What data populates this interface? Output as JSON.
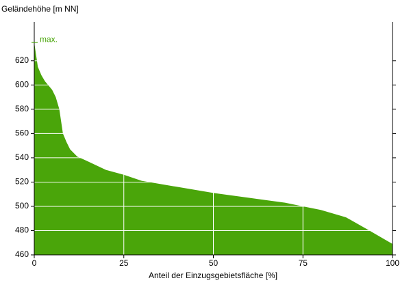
{
  "chart_data": {
    "type": "area",
    "title": "Geländehöhe [m NN]",
    "xlabel": "Anteil der Einzugsgebietsfläche [%]",
    "x": [
      0,
      0.5,
      1,
      2,
      3,
      5,
      6,
      7,
      7.5,
      8,
      9,
      10,
      12,
      15,
      20,
      25,
      30,
      40,
      50,
      60,
      70,
      75,
      80,
      87,
      93,
      100
    ],
    "values": [
      635,
      625,
      615,
      608,
      603,
      596,
      590,
      580,
      570,
      560,
      553,
      547,
      541,
      537,
      530,
      526,
      521,
      516,
      511,
      507,
      503,
      500,
      497,
      491,
      481,
      469
    ],
    "color": "#4aa50a",
    "xlim": [
      0,
      100
    ],
    "xticks": [
      0,
      25,
      50,
      75,
      100
    ],
    "ylim": [
      460,
      652
    ],
    "yticks": [
      460,
      480,
      500,
      520,
      540,
      560,
      580,
      600,
      620
    ],
    "grid": true,
    "grid_color": "#ffffff",
    "annotation": {
      "text": "max.",
      "y": 635
    }
  }
}
